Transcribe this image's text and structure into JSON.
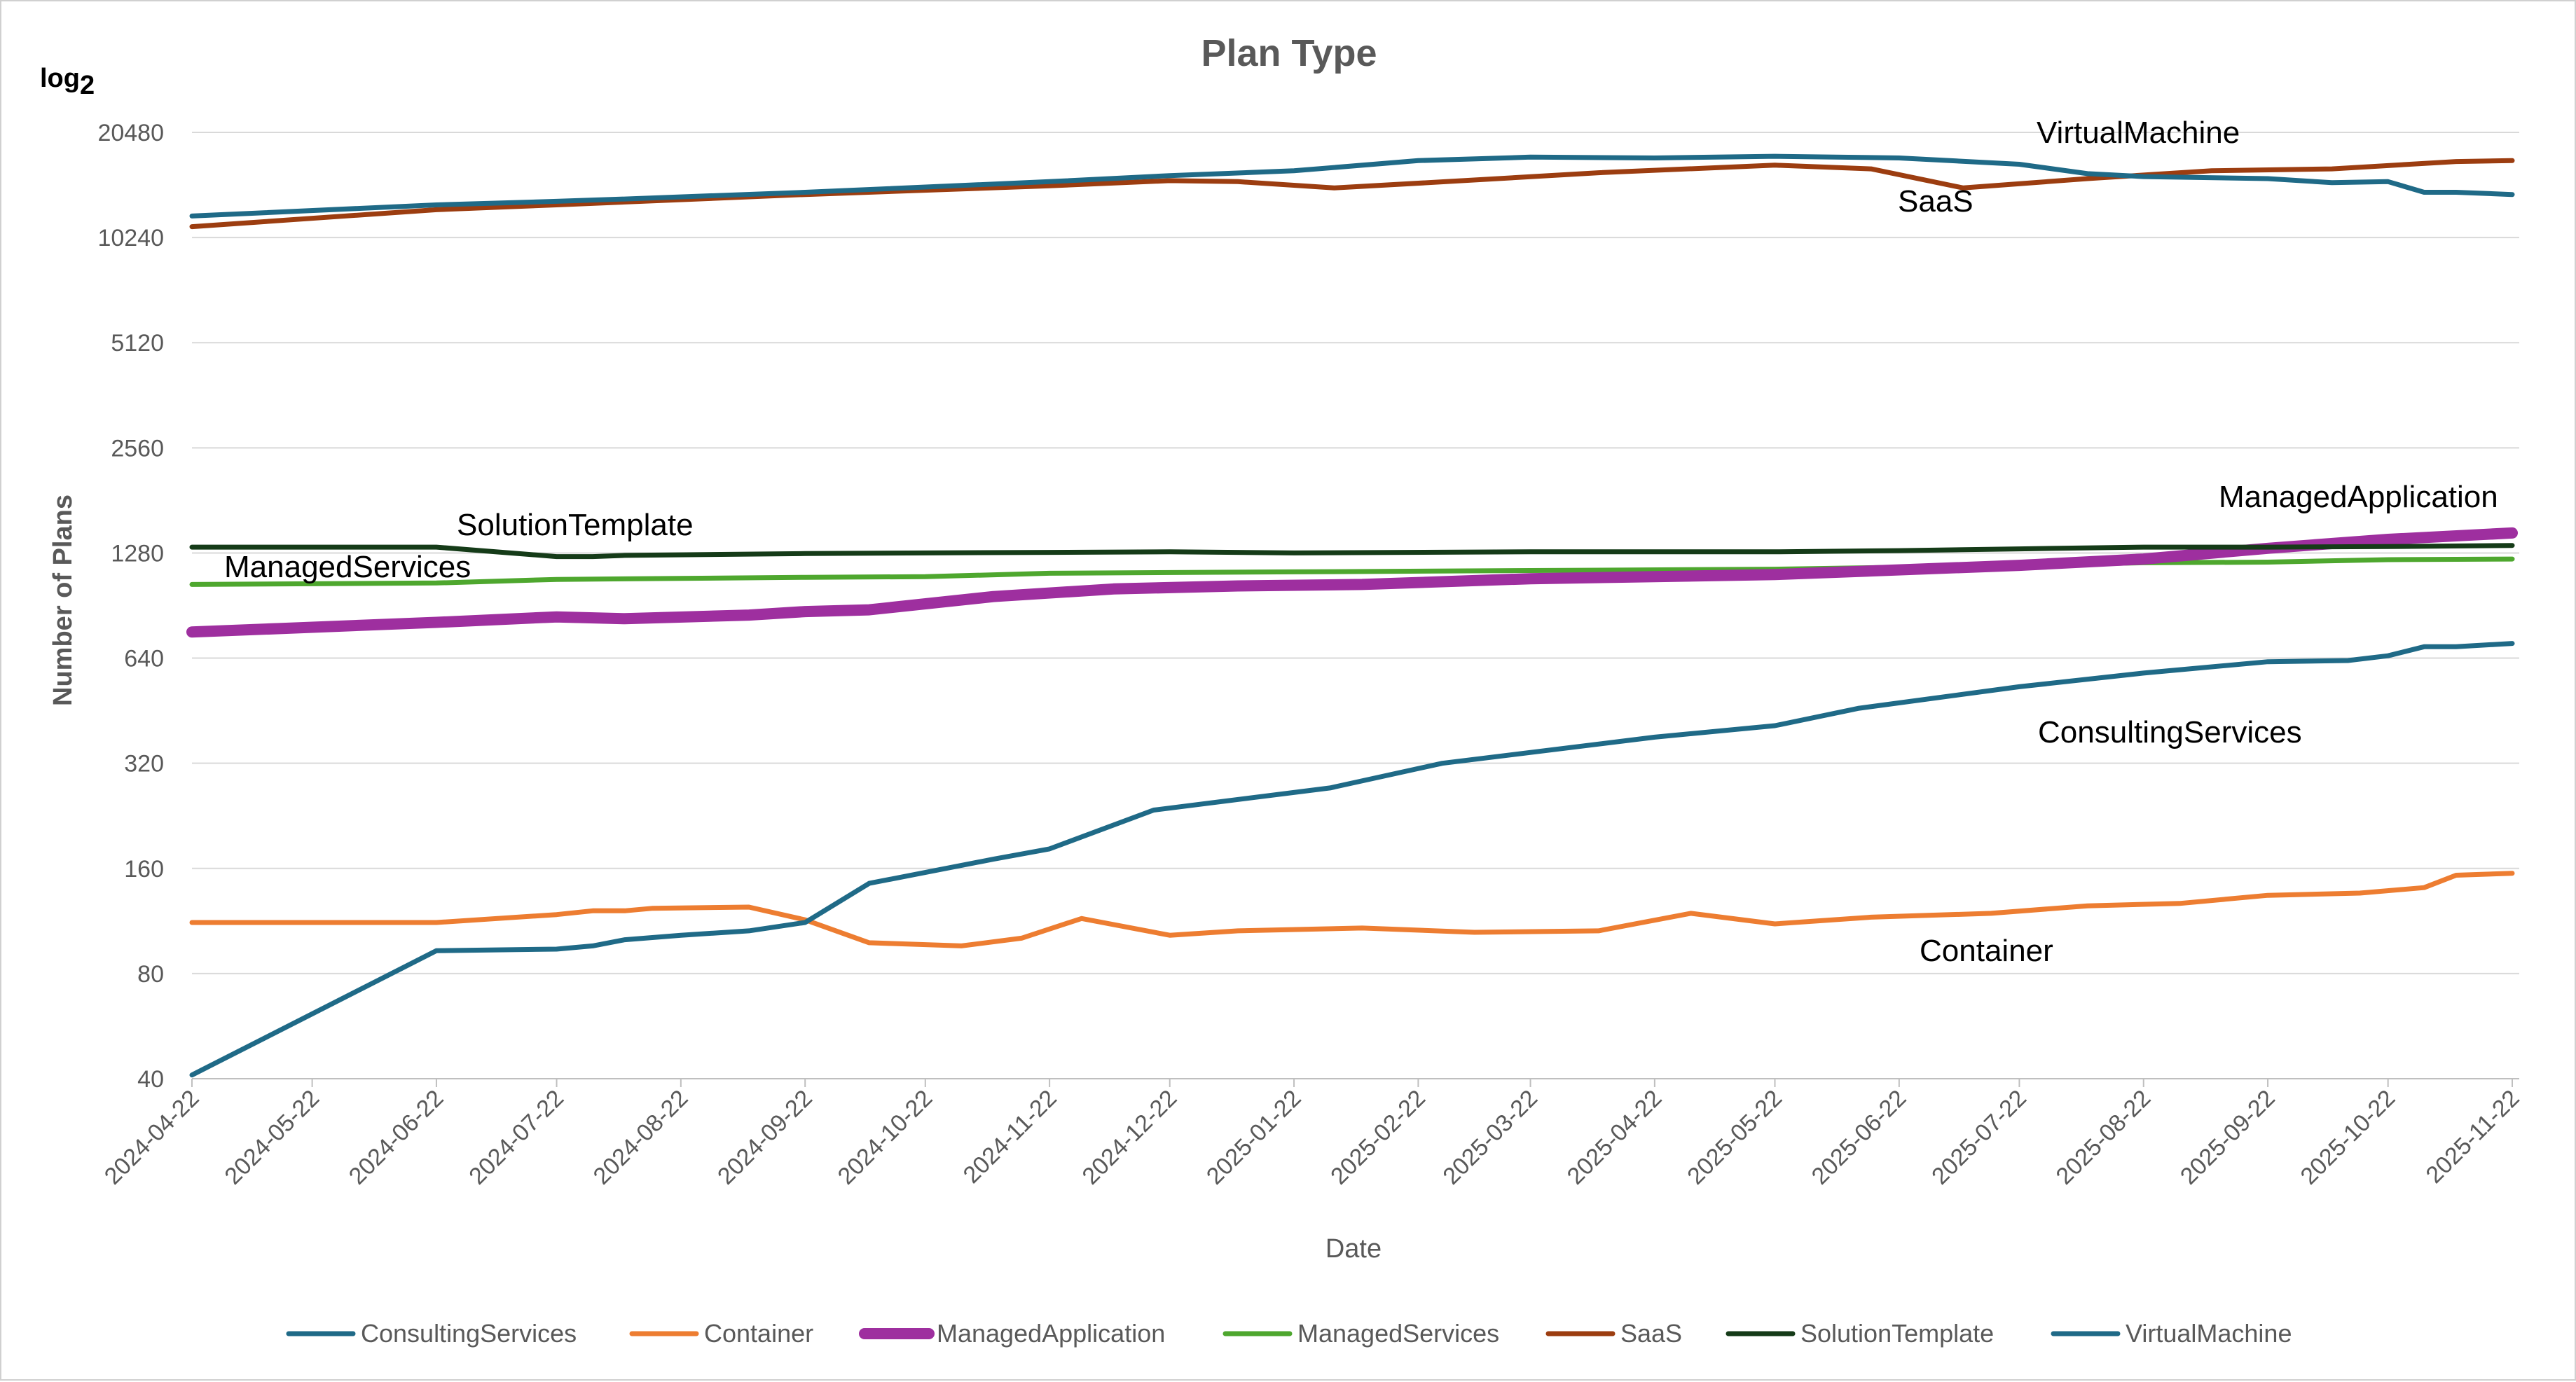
{
  "chart_data": {
    "type": "line",
    "title": "Plan Type",
    "xlabel": "Date",
    "ylabel": "Number of Plans",
    "yscale_label": "log",
    "yscale_sub": "2",
    "yscale": "log2",
    "ylim": [
      40,
      20480
    ],
    "yticks": [
      "40",
      "80",
      "160",
      "320",
      "640",
      "1280",
      "2560",
      "5120",
      "10240",
      "20480"
    ],
    "ytick_values": [
      40,
      80,
      160,
      320,
      640,
      1280,
      2560,
      5120,
      10240,
      20480
    ],
    "xlim": [
      "2024-04-22",
      "2025-11-22"
    ],
    "xticks": [
      "2024-04-22",
      "2024-05-22",
      "2024-06-22",
      "2024-07-22",
      "2024-08-22",
      "2024-09-22",
      "2024-10-22",
      "2024-11-22",
      "2024-12-22",
      "2025-01-22",
      "2025-02-22",
      "2025-03-22",
      "2025-04-22",
      "2025-05-22",
      "2025-06-22",
      "2025-07-22",
      "2025-08-22",
      "2025-09-22",
      "2025-10-22",
      "2025-11-22"
    ],
    "grid": true,
    "legend_position": "bottom",
    "series": [
      {
        "name": "ConsultingServices",
        "color": "#1f6a87",
        "annotation": "ConsultingServices",
        "points": [
          [
            "2024-04-22",
            41
          ],
          [
            "2024-06-22",
            93
          ],
          [
            "2024-07-22",
            94
          ],
          [
            "2024-07-31",
            96
          ],
          [
            "2024-08-08",
            100
          ],
          [
            "2024-08-22",
            103
          ],
          [
            "2024-09-08",
            106
          ],
          [
            "2024-09-22",
            112
          ],
          [
            "2024-10-08",
            145
          ],
          [
            "2024-11-08",
            170
          ],
          [
            "2024-11-22",
            182
          ],
          [
            "2024-12-18",
            235
          ],
          [
            "2025-01-31",
            272
          ],
          [
            "2025-02-28",
            320
          ],
          [
            "2025-04-22",
            380
          ],
          [
            "2025-05-22",
            410
          ],
          [
            "2025-06-12",
            460
          ],
          [
            "2025-07-22",
            530
          ],
          [
            "2025-08-22",
            580
          ],
          [
            "2025-09-22",
            625
          ],
          [
            "2025-10-12",
            630
          ],
          [
            "2025-10-22",
            650
          ],
          [
            "2025-10-31",
            690
          ],
          [
            "2025-11-08",
            690
          ],
          [
            "2025-11-22",
            705
          ]
        ]
      },
      {
        "name": "Container",
        "color": "#ed7d31",
        "annotation": "Container",
        "points": [
          [
            "2024-04-22",
            112
          ],
          [
            "2024-06-22",
            112
          ],
          [
            "2024-07-22",
            118
          ],
          [
            "2024-07-31",
            121
          ],
          [
            "2024-08-08",
            121
          ],
          [
            "2024-08-15",
            123
          ],
          [
            "2024-09-08",
            124
          ],
          [
            "2024-09-22",
            114
          ],
          [
            "2024-10-08",
            98
          ],
          [
            "2024-10-31",
            96
          ],
          [
            "2024-11-15",
            101
          ],
          [
            "2024-11-30",
            115
          ],
          [
            "2024-12-22",
            103
          ],
          [
            "2025-01-08",
            106
          ],
          [
            "2025-02-08",
            108
          ],
          [
            "2025-03-08",
            105
          ],
          [
            "2025-04-08",
            106
          ],
          [
            "2025-05-01",
            119
          ],
          [
            "2025-05-22",
            111
          ],
          [
            "2025-06-15",
            116
          ],
          [
            "2025-07-15",
            119
          ],
          [
            "2025-08-08",
            125
          ],
          [
            "2025-08-31",
            127
          ],
          [
            "2025-09-22",
            134
          ],
          [
            "2025-10-15",
            136
          ],
          [
            "2025-10-31",
            141
          ],
          [
            "2025-11-08",
            153
          ],
          [
            "2025-11-22",
            155
          ]
        ]
      },
      {
        "name": "ManagedApplication",
        "color": "#9e2f9f",
        "annotation": "ManagedApplication",
        "points": [
          [
            "2024-04-22",
            760
          ],
          [
            "2024-06-22",
            810
          ],
          [
            "2024-07-22",
            840
          ],
          [
            "2024-08-08",
            830
          ],
          [
            "2024-09-08",
            850
          ],
          [
            "2024-09-22",
            870
          ],
          [
            "2024-10-08",
            880
          ],
          [
            "2024-11-08",
            960
          ],
          [
            "2024-12-08",
            1010
          ],
          [
            "2025-01-08",
            1030
          ],
          [
            "2025-02-08",
            1040
          ],
          [
            "2025-03-22",
            1080
          ],
          [
            "2025-05-22",
            1110
          ],
          [
            "2025-07-22",
            1180
          ],
          [
            "2025-08-22",
            1230
          ],
          [
            "2025-09-22",
            1320
          ],
          [
            "2025-10-22",
            1400
          ],
          [
            "2025-11-22",
            1460
          ]
        ]
      },
      {
        "name": "ManagedServices",
        "color": "#4ea72e",
        "annotation": "ManagedServices",
        "points": [
          [
            "2024-04-22",
            1040
          ],
          [
            "2024-06-22",
            1050
          ],
          [
            "2024-07-22",
            1075
          ],
          [
            "2024-09-22",
            1090
          ],
          [
            "2024-10-22",
            1095
          ],
          [
            "2024-11-22",
            1120
          ],
          [
            "2025-01-22",
            1130
          ],
          [
            "2025-03-22",
            1140
          ],
          [
            "2025-05-22",
            1150
          ],
          [
            "2025-07-22",
            1180
          ],
          [
            "2025-08-22",
            1200
          ],
          [
            "2025-09-22",
            1205
          ],
          [
            "2025-10-22",
            1225
          ],
          [
            "2025-11-22",
            1230
          ]
        ]
      },
      {
        "name": "SaaS",
        "color": "#9c3d10",
        "annotation": "SaaS",
        "points": [
          [
            "2024-04-22",
            11000
          ],
          [
            "2024-06-22",
            12300
          ],
          [
            "2024-07-22",
            12700
          ],
          [
            "2024-09-22",
            13600
          ],
          [
            "2024-11-22",
            14400
          ],
          [
            "2024-12-22",
            14900
          ],
          [
            "2025-01-08",
            14800
          ],
          [
            "2025-02-01",
            14200
          ],
          [
            "2025-03-01",
            14800
          ],
          [
            "2025-04-08",
            15700
          ],
          [
            "2025-05-22",
            16500
          ],
          [
            "2025-06-15",
            16100
          ],
          [
            "2025-07-08",
            14200
          ],
          [
            "2025-08-08",
            15100
          ],
          [
            "2025-09-08",
            15900
          ],
          [
            "2025-10-08",
            16100
          ],
          [
            "2025-11-08",
            16900
          ],
          [
            "2025-11-22",
            17000
          ]
        ]
      },
      {
        "name": "SolutionTemplate",
        "color": "#153b18",
        "annotation": "SolutionTemplate",
        "points": [
          [
            "2024-04-22",
            1330
          ],
          [
            "2024-06-22",
            1330
          ],
          [
            "2024-07-22",
            1250
          ],
          [
            "2024-07-31",
            1250
          ],
          [
            "2024-08-08",
            1260
          ],
          [
            "2024-09-22",
            1275
          ],
          [
            "2024-10-22",
            1280
          ],
          [
            "2024-11-22",
            1285
          ],
          [
            "2024-12-22",
            1290
          ],
          [
            "2025-01-22",
            1280
          ],
          [
            "2025-03-22",
            1290
          ],
          [
            "2025-05-22",
            1290
          ],
          [
            "2025-06-22",
            1300
          ],
          [
            "2025-07-22",
            1315
          ],
          [
            "2025-08-22",
            1330
          ],
          [
            "2025-09-22",
            1330
          ],
          [
            "2025-10-22",
            1335
          ],
          [
            "2025-11-22",
            1345
          ]
        ]
      },
      {
        "name": "VirtualMachine",
        "color": "#1f6a87",
        "annotation": "VirtualMachine",
        "points": [
          [
            "2024-04-22",
            11800
          ],
          [
            "2024-06-22",
            12700
          ],
          [
            "2024-07-22",
            13000
          ],
          [
            "2024-08-08",
            13200
          ],
          [
            "2024-09-22",
            13800
          ],
          [
            "2024-11-22",
            14800
          ],
          [
            "2024-12-22",
            15400
          ],
          [
            "2025-01-22",
            15900
          ],
          [
            "2025-02-22",
            17000
          ],
          [
            "2025-03-22",
            17400
          ],
          [
            "2025-04-22",
            17300
          ],
          [
            "2025-05-22",
            17500
          ],
          [
            "2025-06-22",
            17300
          ],
          [
            "2025-07-22",
            16600
          ],
          [
            "2025-08-08",
            15600
          ],
          [
            "2025-08-22",
            15300
          ],
          [
            "2025-09-22",
            15100
          ],
          [
            "2025-10-08",
            14700
          ],
          [
            "2025-10-22",
            14800
          ],
          [
            "2025-10-31",
            13800
          ],
          [
            "2025-11-08",
            13800
          ],
          [
            "2025-11-22",
            13600
          ]
        ]
      }
    ]
  }
}
